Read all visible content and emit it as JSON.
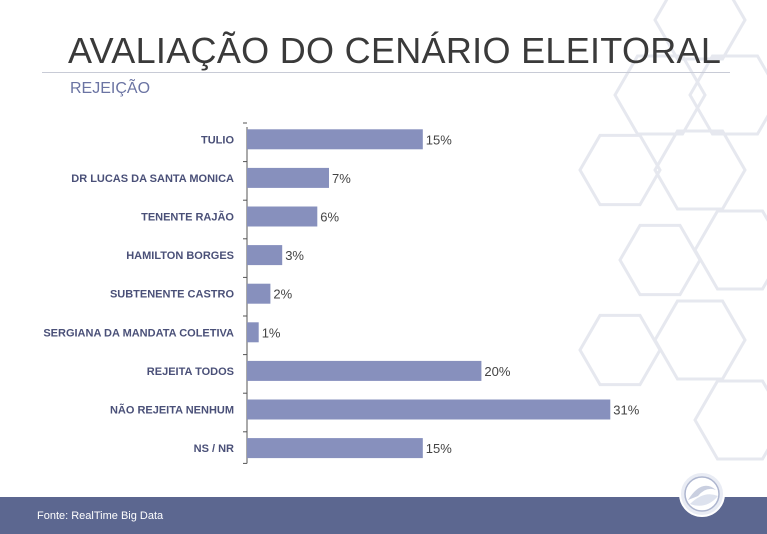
{
  "header": {
    "title": "AVALIAÇÃO DO CENÁRIO ELEITORAL",
    "subtitle": "REJEIÇÃO"
  },
  "footer": {
    "source": "Fonte: RealTime Big Data"
  },
  "colors": {
    "bar": "#8790bd",
    "label": "#4a5078",
    "value": "#444444",
    "footer": "#5c6790"
  },
  "chart_data": {
    "type": "bar",
    "orientation": "horizontal",
    "categories": [
      "TULIO",
      "DR LUCAS DA SANTA MONICA",
      "TENENTE RAJÃO",
      "HAMILTON BORGES",
      "SUBTENENTE CASTRO",
      "SERGIANA DA MANDATA COLETIVA",
      "REJEITA TODOS",
      "NÃO REJEITA NENHUM",
      "NS / NR"
    ],
    "values": [
      15,
      7,
      6,
      3,
      2,
      1,
      20,
      31,
      15
    ],
    "value_labels": [
      "15%",
      "7%",
      "6%",
      "3%",
      "2%",
      "1%",
      "20%",
      "31%",
      "15%"
    ],
    "unit": "%",
    "xlim": [
      0,
      32
    ],
    "grid": false,
    "legend": "none"
  }
}
